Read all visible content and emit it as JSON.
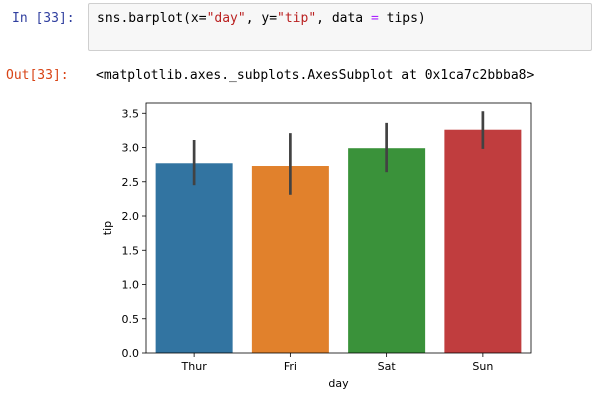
{
  "cell": {
    "in_prompt": "In [33]:",
    "code": {
      "p1": "sns.barplot(x=",
      "s1": "\"day\"",
      "p2": ", y=",
      "s2": "\"tip\"",
      "p3": ", data ",
      "eq": "=",
      "p4": " tips)"
    },
    "out_prompt": "Out[33]:",
    "output_text": "<matplotlib.axes._subplots.AxesSubplot at 0x1ca7c2bbba8>"
  },
  "chart_data": {
    "type": "bar",
    "categories": [
      "Thur",
      "Fri",
      "Sat",
      "Sun"
    ],
    "values": [
      2.77,
      2.73,
      2.99,
      3.26
    ],
    "error_bars": [
      [
        2.45,
        3.11
      ],
      [
        2.31,
        3.21
      ],
      [
        2.64,
        3.36
      ],
      [
        2.98,
        3.53
      ]
    ],
    "colors": [
      "#3274a1",
      "#e1812c",
      "#3a923a",
      "#c03d3e"
    ],
    "xlabel": "day",
    "ylabel": "tip",
    "ylim": [
      0,
      3.65
    ],
    "yticks": [
      "0.0",
      "0.5",
      "1.0",
      "1.5",
      "2.0",
      "2.5",
      "3.0",
      "3.5"
    ],
    "ytick_values": [
      0,
      0.5,
      1.0,
      1.5,
      2.0,
      2.5,
      3.0,
      3.5
    ],
    "grid": false
  }
}
